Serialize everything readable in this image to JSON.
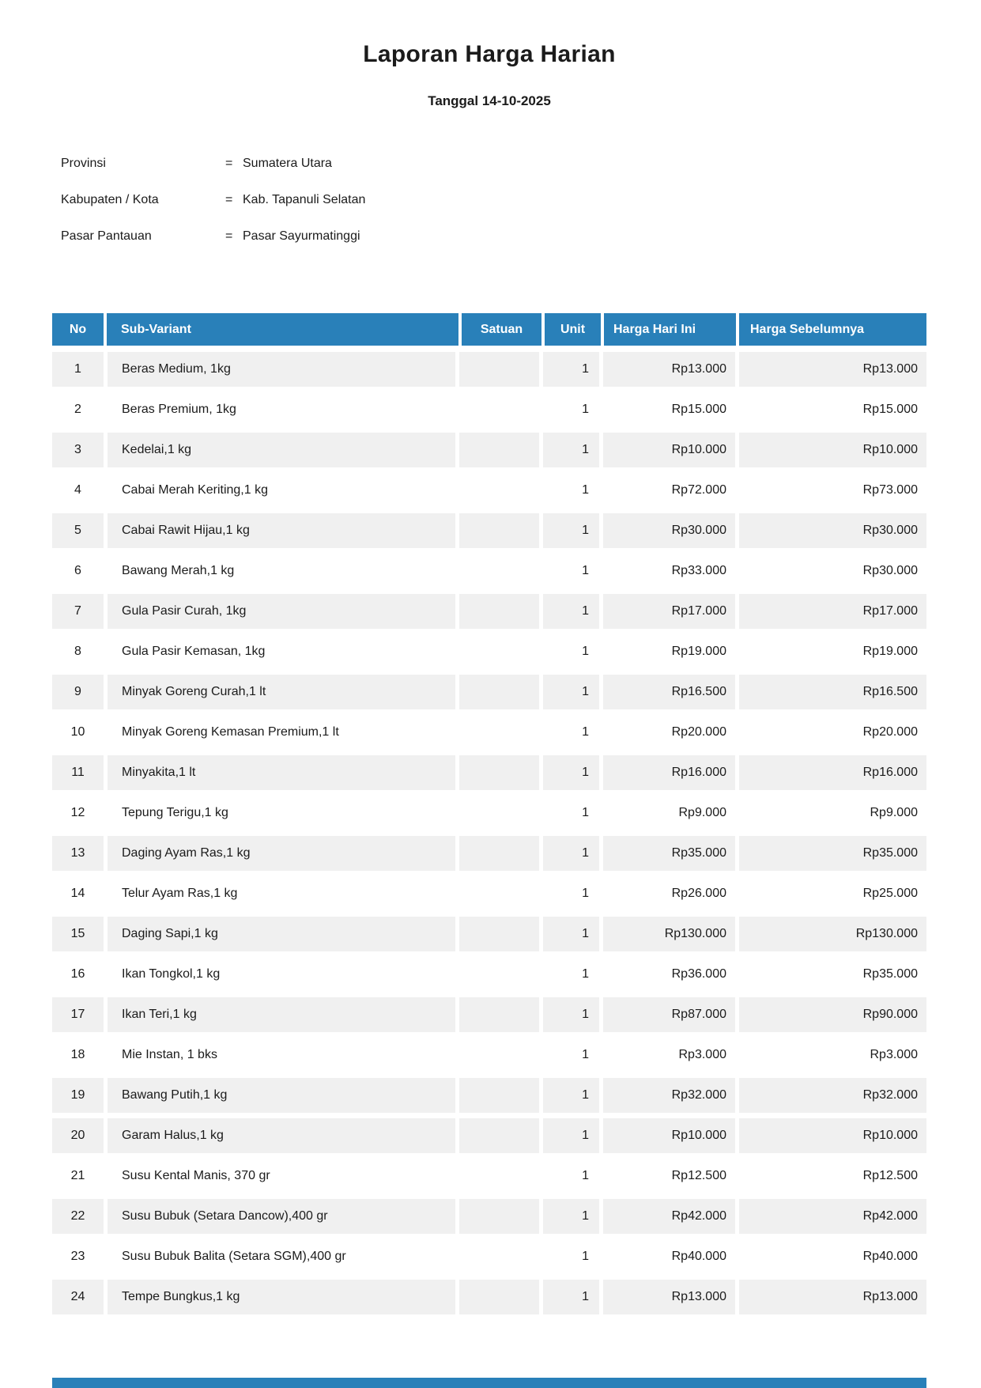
{
  "title": "Laporan Harga Harian",
  "subtitle": "Tanggal 14-10-2025",
  "info": {
    "rows": [
      {
        "label": "Provinsi",
        "separator": "=",
        "value": "Sumatera Utara"
      },
      {
        "label": "Kabupaten / Kota",
        "separator": "=",
        "value": "Kab. Tapanuli Selatan"
      },
      {
        "label": "Pasar Pantauan",
        "separator": "=",
        "value": "Pasar Sayurmatinggi"
      }
    ]
  },
  "table": {
    "columns": [
      "No",
      "Sub-Variant",
      "Satuan",
      "Unit",
      "Harga Hari Ini",
      "Harga Sebelumnya"
    ],
    "rows": [
      {
        "no": "1",
        "sub_variant": "Beras Medium, 1kg",
        "satuan": "",
        "unit": "1",
        "harga_hari_ini": "Rp13.000",
        "harga_sebelumnya": "Rp13.000",
        "shaded": true
      },
      {
        "no": "2",
        "sub_variant": "Beras Premium, 1kg",
        "satuan": "",
        "unit": "1",
        "harga_hari_ini": "Rp15.000",
        "harga_sebelumnya": "Rp15.000",
        "shaded": false
      },
      {
        "no": "3",
        "sub_variant": "Kedelai,1 kg",
        "satuan": "",
        "unit": "1",
        "harga_hari_ini": "Rp10.000",
        "harga_sebelumnya": "Rp10.000",
        "shaded": true
      },
      {
        "no": "4",
        "sub_variant": "Cabai Merah Keriting,1 kg",
        "satuan": "",
        "unit": "1",
        "harga_hari_ini": "Rp72.000",
        "harga_sebelumnya": "Rp73.000",
        "shaded": false
      },
      {
        "no": "5",
        "sub_variant": "Cabai Rawit Hijau,1 kg",
        "satuan": "",
        "unit": "1",
        "harga_hari_ini": "Rp30.000",
        "harga_sebelumnya": "Rp30.000",
        "shaded": true
      },
      {
        "no": "6",
        "sub_variant": "Bawang Merah,1 kg",
        "satuan": "",
        "unit": "1",
        "harga_hari_ini": "Rp33.000",
        "harga_sebelumnya": "Rp30.000",
        "shaded": false
      },
      {
        "no": "7",
        "sub_variant": "Gula Pasir Curah, 1kg",
        "satuan": "",
        "unit": "1",
        "harga_hari_ini": "Rp17.000",
        "harga_sebelumnya": "Rp17.000",
        "shaded": true
      },
      {
        "no": "8",
        "sub_variant": "Gula Pasir Kemasan, 1kg",
        "satuan": "",
        "unit": "1",
        "harga_hari_ini": "Rp19.000",
        "harga_sebelumnya": "Rp19.000",
        "shaded": false
      },
      {
        "no": "9",
        "sub_variant": "Minyak Goreng Curah,1 lt",
        "satuan": "",
        "unit": "1",
        "harga_hari_ini": "Rp16.500",
        "harga_sebelumnya": "Rp16.500",
        "shaded": true
      },
      {
        "no": "10",
        "sub_variant": "Minyak Goreng Kemasan Premium,1 lt",
        "satuan": "",
        "unit": "1",
        "harga_hari_ini": "Rp20.000",
        "harga_sebelumnya": "Rp20.000",
        "shaded": false
      },
      {
        "no": "11",
        "sub_variant": "Minyakita,1 lt",
        "satuan": "",
        "unit": "1",
        "harga_hari_ini": "Rp16.000",
        "harga_sebelumnya": "Rp16.000",
        "shaded": true
      },
      {
        "no": "12",
        "sub_variant": "Tepung Terigu,1 kg",
        "satuan": "",
        "unit": "1",
        "harga_hari_ini": "Rp9.000",
        "harga_sebelumnya": "Rp9.000",
        "shaded": false
      },
      {
        "no": "13",
        "sub_variant": "Daging Ayam Ras,1 kg",
        "satuan": "",
        "unit": "1",
        "harga_hari_ini": "Rp35.000",
        "harga_sebelumnya": "Rp35.000",
        "shaded": true
      },
      {
        "no": "14",
        "sub_variant": "Telur Ayam Ras,1 kg",
        "satuan": "",
        "unit": "1",
        "harga_hari_ini": "Rp26.000",
        "harga_sebelumnya": "Rp25.000",
        "shaded": false
      },
      {
        "no": "15",
        "sub_variant": "Daging Sapi,1 kg",
        "satuan": "",
        "unit": "1",
        "harga_hari_ini": "Rp130.000",
        "harga_sebelumnya": "Rp130.000",
        "shaded": true
      },
      {
        "no": "16",
        "sub_variant": "Ikan Tongkol,1 kg",
        "satuan": "",
        "unit": "1",
        "harga_hari_ini": "Rp36.000",
        "harga_sebelumnya": "Rp35.000",
        "shaded": false
      },
      {
        "no": "17",
        "sub_variant": "Ikan Teri,1 kg",
        "satuan": "",
        "unit": "1",
        "harga_hari_ini": "Rp87.000",
        "harga_sebelumnya": "Rp90.000",
        "shaded": true
      },
      {
        "no": "18",
        "sub_variant": "Mie Instan, 1 bks",
        "satuan": "",
        "unit": "1",
        "harga_hari_ini": "Rp3.000",
        "harga_sebelumnya": "Rp3.000",
        "shaded": false
      },
      {
        "no": "19",
        "sub_variant": "Bawang Putih,1 kg",
        "satuan": "",
        "unit": "1",
        "harga_hari_ini": "Rp32.000",
        "harga_sebelumnya": "Rp32.000",
        "shaded": true
      },
      {
        "no": "20",
        "sub_variant": "Garam Halus,1 kg",
        "satuan": "",
        "unit": "1",
        "harga_hari_ini": "Rp10.000",
        "harga_sebelumnya": "Rp10.000",
        "shaded": true
      },
      {
        "no": "21",
        "sub_variant": "Susu Kental Manis, 370 gr",
        "satuan": "",
        "unit": "1",
        "harga_hari_ini": "Rp12.500",
        "harga_sebelumnya": "Rp12.500",
        "shaded": false
      },
      {
        "no": "22",
        "sub_variant": "Susu Bubuk (Setara Dancow),400 gr",
        "satuan": "",
        "unit": "1",
        "harga_hari_ini": "Rp42.000",
        "harga_sebelumnya": "Rp42.000",
        "shaded": true
      },
      {
        "no": "23",
        "sub_variant": "Susu Bubuk Balita (Setara SGM),400 gr",
        "satuan": "",
        "unit": "1",
        "harga_hari_ini": "Rp40.000",
        "harga_sebelumnya": "Rp40.000",
        "shaded": false
      },
      {
        "no": "24",
        "sub_variant": "Tempe Bungkus,1 kg",
        "satuan": "",
        "unit": "1",
        "harga_hari_ini": "Rp13.000",
        "harga_sebelumnya": "Rp13.000",
        "shaded": true
      }
    ]
  },
  "colors": {
    "header_blue": "#2980b9",
    "row_shaded": "#f0f0f0",
    "row_plain": "#ffffff"
  }
}
